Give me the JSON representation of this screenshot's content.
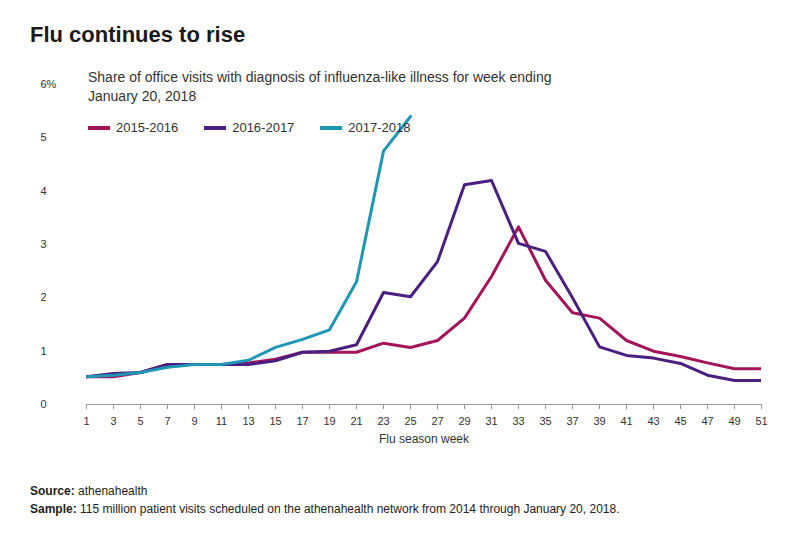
{
  "chart_data": {
    "type": "line",
    "title": "Flu continues to rise",
    "subtitle": "Share of office visits with diagnosis of influenza-like illness for week ending January 20, 2018",
    "x_label": "Flu season week",
    "x": [
      1,
      3,
      5,
      7,
      9,
      11,
      13,
      15,
      17,
      19,
      21,
      23,
      25,
      27,
      29,
      31,
      33,
      35,
      37,
      39,
      41,
      43,
      45,
      47,
      49,
      51
    ],
    "series": [
      {
        "name": "2015-2016",
        "color": "#a3145a",
        "values": [
          0.52,
          0.52,
          0.6,
          0.75,
          0.75,
          0.75,
          0.78,
          0.85,
          0.98,
          0.98,
          0.98,
          1.15,
          1.07,
          1.2,
          1.62,
          2.4,
          3.33,
          2.33,
          1.72,
          1.62,
          1.2,
          1.0,
          0.9,
          0.78,
          0.67,
          0.67
        ]
      },
      {
        "name": "2016-2017",
        "color": "#4b1f80",
        "values": [
          0.52,
          0.58,
          0.6,
          0.75,
          0.75,
          0.75,
          0.75,
          0.82,
          0.98,
          1.0,
          1.12,
          2.1,
          2.02,
          2.68,
          4.12,
          4.2,
          3.02,
          2.87,
          2.0,
          1.08,
          0.92,
          0.87,
          0.77,
          0.55,
          0.45,
          0.45
        ]
      },
      {
        "name": "2017-2018",
        "color": "#1e96b4",
        "values": [
          0.52,
          0.55,
          0.6,
          0.7,
          0.75,
          0.75,
          0.83,
          1.07,
          1.22,
          1.4,
          2.3,
          4.75,
          5.4,
          null,
          null,
          null,
          null,
          null,
          null,
          null,
          null,
          null,
          null,
          null,
          null,
          null
        ]
      }
    ],
    "xlim": [
      1,
      51
    ],
    "xticks": [
      1,
      3,
      5,
      7,
      9,
      11,
      13,
      15,
      17,
      19,
      21,
      23,
      25,
      27,
      29,
      31,
      33,
      35,
      37,
      39,
      41,
      43,
      45,
      47,
      49,
      51
    ],
    "ylim": [
      0,
      6
    ],
    "yticks": [
      0,
      1,
      2,
      3,
      4,
      5,
      {
        "value": 6,
        "label": "6%"
      }
    ],
    "grid": false,
    "legend": "top-left",
    "notes": [
      {
        "label": "Source:",
        "text": "athenahealth"
      },
      {
        "label": "Sample:",
        "text": "115 million patient visits scheduled on the athenahealth network from 2014 through January 20, 2018."
      }
    ]
  }
}
